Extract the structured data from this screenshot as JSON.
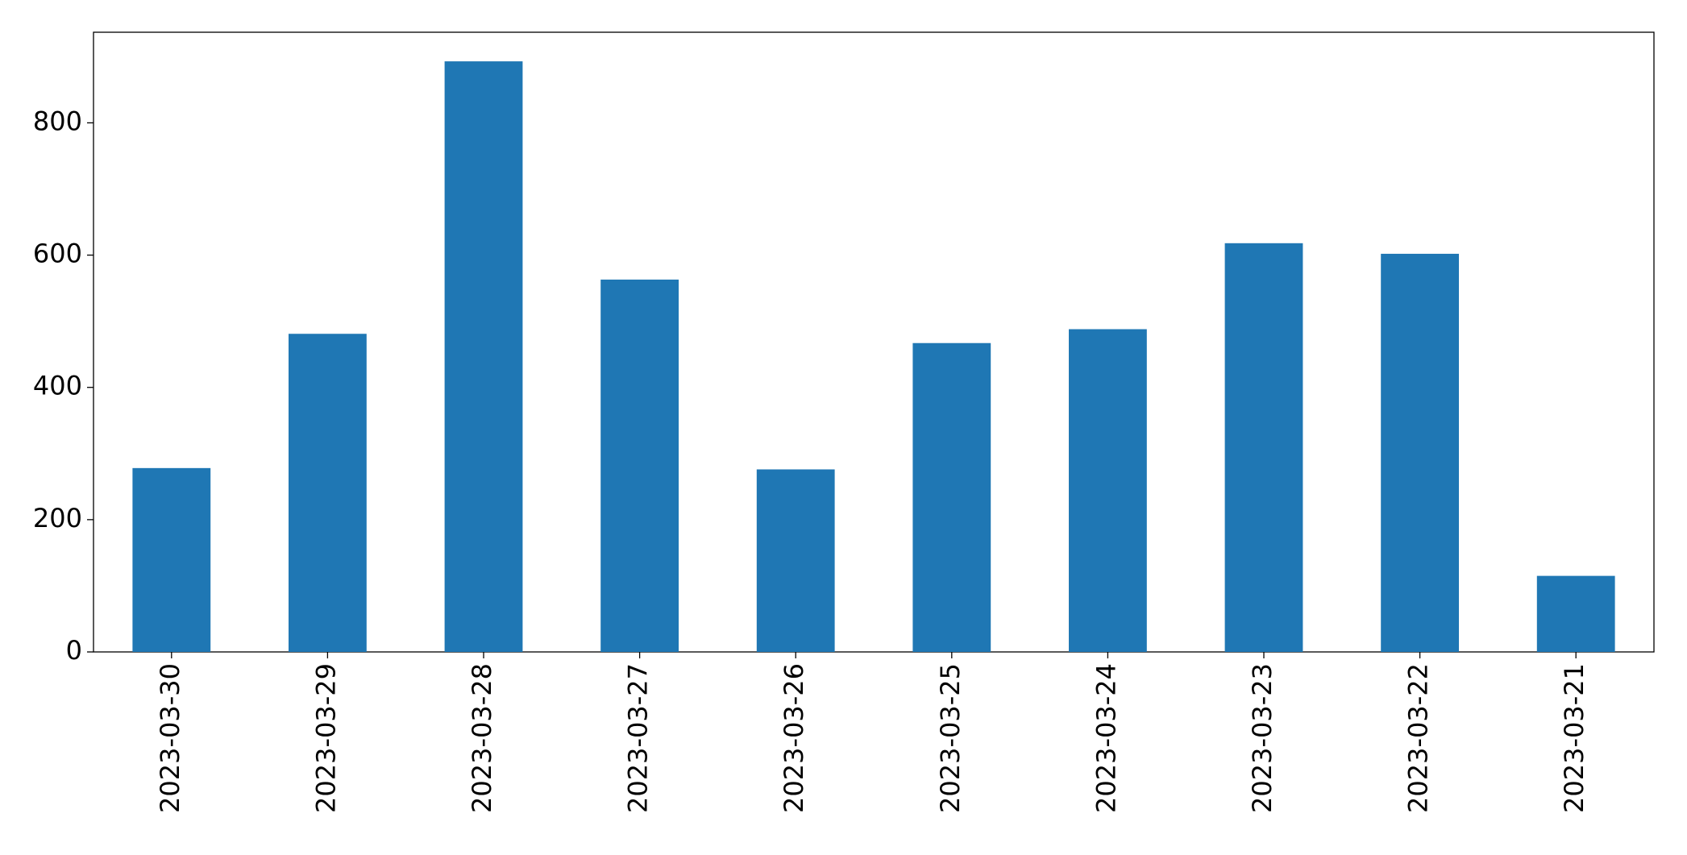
{
  "chart_data": {
    "type": "bar",
    "categories": [
      "2023-03-30",
      "2023-03-29",
      "2023-03-28",
      "2023-03-27",
      "2023-03-26",
      "2023-03-25",
      "2023-03-24",
      "2023-03-23",
      "2023-03-22",
      "2023-03-21"
    ],
    "values": [
      278,
      481,
      893,
      563,
      276,
      467,
      488,
      618,
      602,
      115
    ],
    "color": "#1f77b4",
    "ylim": [
      0,
      937
    ],
    "yticks": [
      0,
      200,
      400,
      600,
      800
    ],
    "grid": false
  }
}
